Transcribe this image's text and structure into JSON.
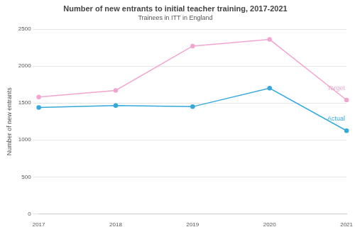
{
  "chart_data": {
    "type": "line",
    "title": "Number of new entrants to initial teacher training, 2017-2021",
    "subtitle": "Trainees in ITT in England",
    "y_label": "Number of new entrants",
    "categories": [
      "2017",
      "2018",
      "2019",
      "2020",
      "2021"
    ],
    "series": [
      {
        "name": "Target",
        "color": "#f2a6cf",
        "values": [
          1580,
          1670,
          2270,
          2360,
          1540
        ],
        "marker": "circle",
        "line_style": "solid"
      },
      {
        "name": "Actual",
        "color": "#35a9d9",
        "values": [
          1440,
          1465,
          1450,
          1700,
          1125
        ],
        "marker": "circle",
        "line_style": "solid"
      }
    ],
    "ylim": [
      0,
      2500
    ],
    "yticks": [
      0,
      500,
      1000,
      1500,
      2000,
      2500
    ],
    "grid": true
  }
}
